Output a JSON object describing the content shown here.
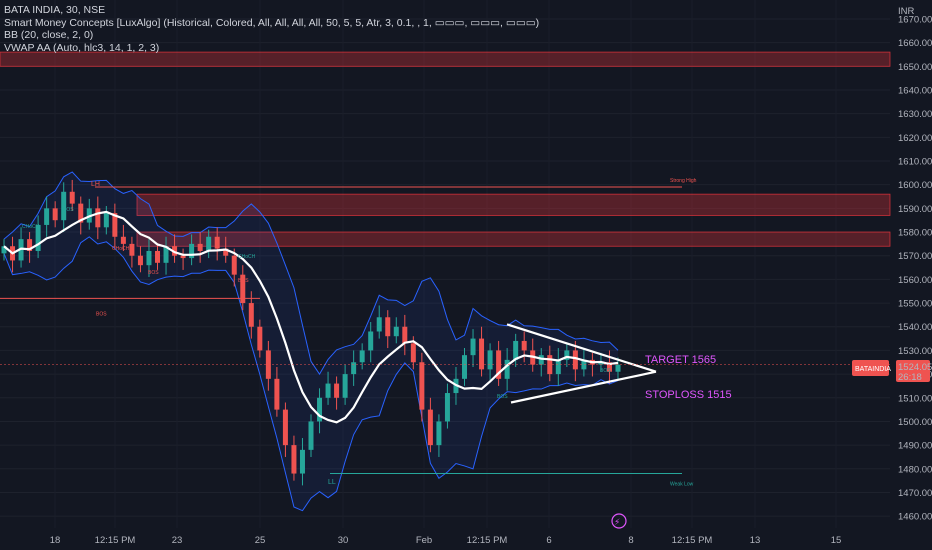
{
  "header": {
    "symbol_line": "BATA INDIA, 30, NSE",
    "indicator_1": "Smart Money Concepts [LuxAlgo] (Historical, Colored, All, All, All, All, 50, 5, 5, Atr, 3, 0.1, , 1, ▭▭▭, ▭▭▭, ▭▭▭)",
    "indicator_2": "BB (20, close, 2, 0)",
    "indicator_3": "VWAP AA (Auto, hlc3, 14, 1, 2, 3)"
  },
  "price_axis": {
    "currency": "INR",
    "ticks": [
      1460,
      1470,
      1480,
      1490,
      1500,
      1510,
      1520,
      1530,
      1540,
      1550,
      1560,
      1570,
      1580,
      1590,
      1600,
      1610,
      1620,
      1630,
      1640,
      1650,
      1660,
      1670
    ]
  },
  "time_axis": {
    "labels": [
      "18",
      "12:15 PM",
      "23",
      "25",
      "30",
      "Feb",
      "12:15 PM",
      "6",
      "8",
      "12:15 PM",
      "13",
      "15"
    ]
  },
  "current_price": {
    "ticker": "BATAINDIA",
    "value": "1524.05",
    "countdown": "26:18",
    "price": 1524.05
  },
  "colors": {
    "up": "#26a69a",
    "down": "#ef5350",
    "zone": "#f2363d",
    "bb_fill": "#2962ff",
    "vwap": "#ffffff",
    "annotation": "#e056fd"
  },
  "chart_data": {
    "type": "candlestick",
    "ylim": [
      1455,
      1678
    ],
    "supply_zones": [
      [
        1650,
        1656
      ],
      [
        1587,
        1596
      ],
      [
        1574,
        1580
      ]
    ],
    "levels": [
      {
        "price": 1599,
        "label": "Strong High"
      },
      {
        "price": 1552,
        "label": "BOS"
      },
      {
        "price": 1478,
        "label": "Weak Low"
      }
    ],
    "swing_labels": [
      "LH",
      "LL"
    ],
    "structure_labels": [
      "BOS",
      "CHoCH",
      "CHoCH",
      "BOS",
      "CHoCH",
      "BOS",
      "BOS",
      "BOS"
    ],
    "annotations": [
      "TARGET 1565",
      "STOPLOSS 1515"
    ],
    "pattern": {
      "type": "triangle",
      "upper": [
        [
          1541,
          1521
        ]
      ],
      "lower": [
        [
          1508,
          1521
        ]
      ]
    },
    "series": [
      {
        "name": "price",
        "values": [
          1574,
          1568,
          1577,
          1572,
          1583,
          1590,
          1585,
          1597,
          1592,
          1584,
          1590,
          1582,
          1588,
          1578,
          1575,
          1570,
          1566,
          1572,
          1567,
          1574,
          1570,
          1569,
          1575,
          1572,
          1578,
          1573,
          1570,
          1562,
          1550,
          1540,
          1530,
          1518,
          1505,
          1490,
          1478,
          1488,
          1500,
          1510,
          1516,
          1510,
          1520,
          1525,
          1530,
          1538,
          1544,
          1536,
          1540,
          1533,
          1525,
          1505,
          1490,
          1500,
          1512,
          1518,
          1528,
          1535,
          1522,
          1530,
          1518,
          1526,
          1534,
          1530,
          1524,
          1528,
          1520,
          1526,
          1530,
          1522,
          1526,
          1524,
          1525,
          1521,
          1524
        ]
      }
    ]
  },
  "footer": {
    "lightning": "⚡"
  }
}
